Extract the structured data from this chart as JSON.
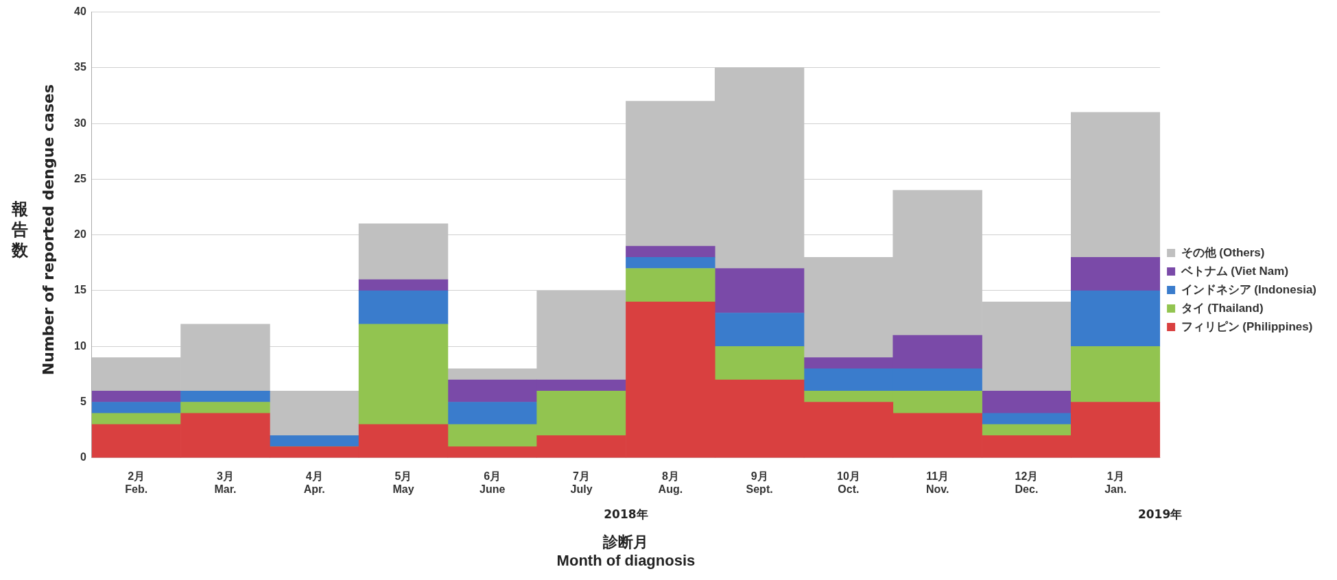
{
  "chart_data": {
    "type": "bar",
    "stacked": true,
    "categories": [
      "2月\nFeb.",
      "3月\nMar.",
      "4月\nApr.",
      "5月\nMay",
      "6月\nJune",
      "7月\nJuly",
      "8月\nAug.",
      "9月\nSept.",
      "10月\nOct.",
      "11月\nNov.",
      "12月\nDec.",
      "1月\nJan."
    ],
    "series": [
      {
        "name": "フィリピン (Philippines)",
        "color": "#d94040",
        "values": [
          3,
          4,
          1,
          3,
          1,
          2,
          14,
          7,
          5,
          4,
          2,
          5
        ]
      },
      {
        "name": "タイ (Thailand)",
        "color": "#92c450",
        "values": [
          1,
          1,
          0,
          9,
          2,
          4,
          3,
          3,
          1,
          2,
          1,
          5
        ]
      },
      {
        "name": "インドネシア (Indonesia)",
        "color": "#3a7ccc",
        "values": [
          1,
          1,
          1,
          3,
          2,
          0,
          1,
          3,
          2,
          2,
          1,
          5
        ]
      },
      {
        "name": "ベトナム (Viet Nam)",
        "color": "#7a4aa8",
        "values": [
          1,
          0,
          0,
          1,
          2,
          1,
          1,
          4,
          1,
          3,
          2,
          3
        ]
      },
      {
        "name": "その他 (Others)",
        "color": "#c0c0c0",
        "values": [
          3,
          6,
          4,
          5,
          1,
          8,
          13,
          18,
          9,
          13,
          8,
          13
        ]
      }
    ],
    "xlabel": "診断月\nMonth of diagnosis",
    "ylabel": "報告数\nNumber of reported dengue cases",
    "annotations": [
      "2018年",
      "2019年"
    ],
    "ylim": [
      0,
      40
    ],
    "yticks": [
      0,
      5,
      10,
      15,
      20,
      25,
      30,
      35,
      40
    ],
    "grid": "y",
    "legend": "right"
  }
}
